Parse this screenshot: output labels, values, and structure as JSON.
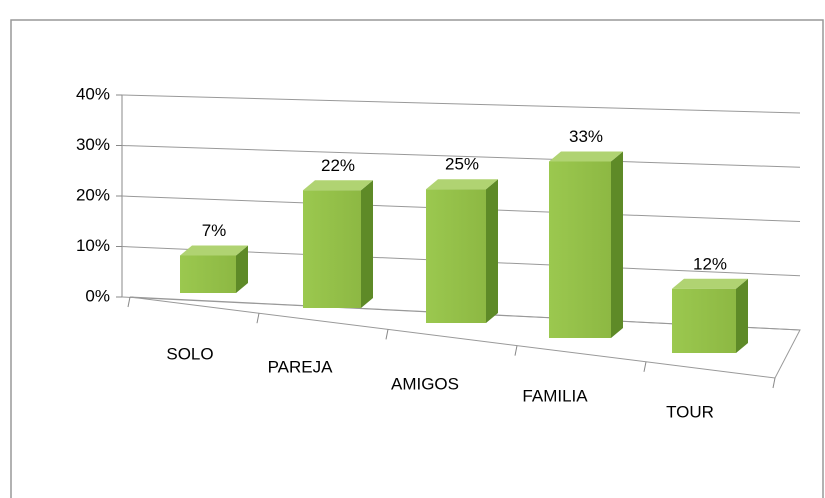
{
  "chart_data": {
    "type": "bar3d",
    "categories": [
      "SOLO",
      "PAREJA",
      "AMIGOS",
      "FAMILIA",
      "TOUR"
    ],
    "values": [
      7,
      22,
      25,
      33,
      12
    ],
    "value_labels": [
      "7%",
      "22%",
      "25%",
      "33%",
      "12%"
    ],
    "color": "#8db843",
    "ylim": [
      0,
      40
    ],
    "yticks": [
      {
        "value": 0,
        "label": "0%"
      },
      {
        "value": 10,
        "label": "10%"
      },
      {
        "value": 20,
        "label": "20%"
      },
      {
        "value": 30,
        "label": "30%"
      },
      {
        "value": 40,
        "label": "40%"
      }
    ],
    "grid": true
  }
}
